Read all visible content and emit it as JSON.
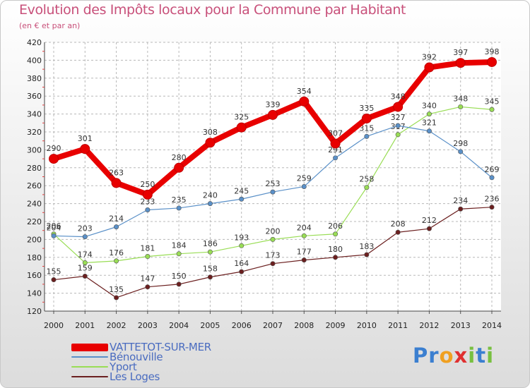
{
  "chart_data": {
    "type": "line",
    "title": "Evolution des Impôts locaux pour la Commune par Habitant",
    "subtitle": "(en € et par an)",
    "x": [
      "2000",
      "2001",
      "2002",
      "2003",
      "2004",
      "2005",
      "2006",
      "2007",
      "2008",
      "2009",
      "2010",
      "2011",
      "2012",
      "2013",
      "2014"
    ],
    "ylim": [
      120,
      420
    ],
    "y_ticks": [
      120,
      140,
      160,
      180,
      200,
      220,
      240,
      260,
      280,
      300,
      320,
      340,
      360,
      380,
      400,
      420
    ],
    "grid": true,
    "legend_position": "bottom-left",
    "series": [
      {
        "name": "VATTETOT-SUR-MER",
        "color": "#e80000",
        "values": [
          290,
          301,
          263,
          250,
          280,
          308,
          325,
          339,
          354,
          307,
          335,
          348,
          392,
          397,
          398
        ]
      },
      {
        "name": "Bénouville",
        "color": "#5a90c8",
        "values": [
          204,
          203,
          214,
          233,
          235,
          240,
          245,
          253,
          259,
          291,
          315,
          327,
          321,
          298,
          269
        ]
      },
      {
        "name": "Yport",
        "color": "#99dd55",
        "values": [
          206,
          174,
          176,
          181,
          184,
          186,
          193,
          200,
          204,
          206,
          258,
          317,
          340,
          348,
          345
        ]
      },
      {
        "name": "Les Loges",
        "color": "#6b1f1f",
        "values": [
          155,
          159,
          135,
          147,
          150,
          158,
          164,
          173,
          177,
          180,
          183,
          208,
          212,
          234,
          236
        ]
      }
    ]
  },
  "brand": {
    "text": "Proxiti",
    "letters": [
      {
        "ch": "P",
        "color": "#3b7fd0"
      },
      {
        "ch": "r",
        "color": "#3b7fd0"
      },
      {
        "ch": "o",
        "color": "#f0a020"
      },
      {
        "ch": "x",
        "color": "#e03030"
      },
      {
        "ch": "i",
        "color": "#78c040"
      },
      {
        "ch": "t",
        "color": "#3b7fd0"
      },
      {
        "ch": "i",
        "color": "#78c040"
      }
    ]
  }
}
